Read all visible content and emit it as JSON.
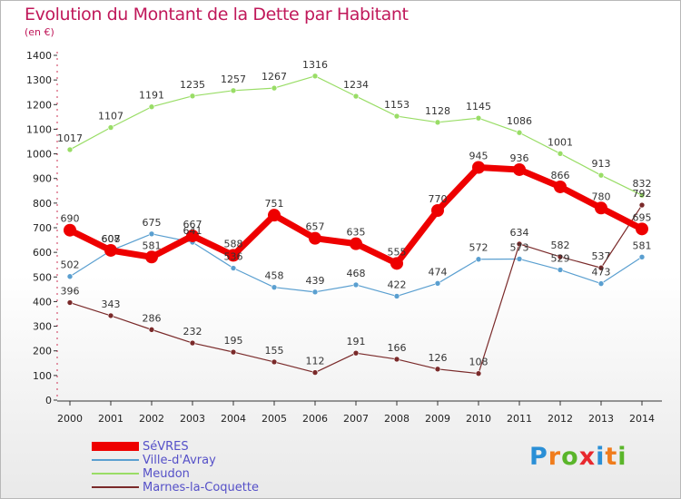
{
  "title": "Evolution du Montant de la Dette par Habitant",
  "subtitle": "(en €)",
  "logo": {
    "text": "Proxiti",
    "letter_colors": [
      "#2a8fd6",
      "#f07c1c",
      "#5ab52a",
      "#e8282e",
      "#2a8fd6",
      "#f07c1c",
      "#5ab52a"
    ]
  },
  "chart_data": {
    "type": "line",
    "title": "Evolution du Montant de la Dette par Habitant",
    "ylabel": "(en €)",
    "xlabel": "",
    "x": [
      "2000",
      "2001",
      "2002",
      "2003",
      "2004",
      "2005",
      "2006",
      "2007",
      "2008",
      "2009",
      "2010",
      "2011",
      "2012",
      "2013",
      "2014"
    ],
    "ylim": [
      0,
      1400
    ],
    "yticks": [
      0,
      100,
      200,
      300,
      400,
      500,
      600,
      700,
      800,
      900,
      1000,
      1100,
      1200,
      1300,
      1400
    ],
    "grid": false,
    "legend_position": "bottom-left",
    "series": [
      {
        "name": "SéVRES",
        "color": "#ee0000",
        "values": [
          690,
          608,
          581,
          667,
          588,
          751,
          657,
          635,
          555,
          770,
          945,
          936,
          866,
          780,
          695
        ]
      },
      {
        "name": "Ville-d'Avray",
        "color": "#5a9fd0",
        "values": [
          502,
          607,
          675,
          641,
          536,
          458,
          439,
          468,
          422,
          474,
          572,
          573,
          529,
          473,
          581
        ]
      },
      {
        "name": "Meudon",
        "color": "#99dd66",
        "values": [
          1017,
          1107,
          1191,
          1235,
          1257,
          1267,
          1316,
          1234,
          1153,
          1128,
          1145,
          1086,
          1001,
          913,
          832
        ]
      },
      {
        "name": "Marnes-la-Coquette",
        "color": "#7a2a2a",
        "values": [
          396,
          343,
          286,
          232,
          195,
          155,
          112,
          191,
          166,
          126,
          108,
          634,
          582,
          537,
          792
        ]
      }
    ]
  }
}
